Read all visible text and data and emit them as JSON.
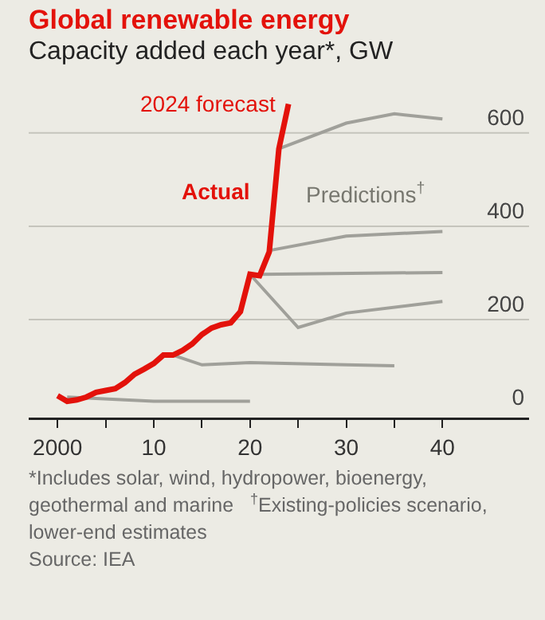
{
  "chart_data": {
    "type": "line",
    "title": "Global renewable energy",
    "subtitle": "Capacity added each year*, GW",
    "xlim": [
      1997,
      2049
    ],
    "ylim": [
      -10,
      680
    ],
    "xticks": [
      {
        "value": 2000,
        "label": "2000"
      },
      {
        "value": 2005,
        "label": null
      },
      {
        "value": 2010,
        "label": "10"
      },
      {
        "value": 2015,
        "label": null
      },
      {
        "value": 2020,
        "label": "20"
      },
      {
        "value": 2025,
        "label": null
      },
      {
        "value": 2030,
        "label": "30"
      },
      {
        "value": 2035,
        "label": null
      },
      {
        "value": 2040,
        "label": "40"
      }
    ],
    "yticks": [
      0,
      200,
      400,
      600
    ],
    "grid": "y",
    "legend": false,
    "line_style": "solid",
    "series": [
      {
        "color": "#a0a09a",
        "x": [
          2001,
          2010,
          2020
        ],
        "values": [
          34,
          25,
          25
        ]
      },
      {
        "color": "#a0a09a",
        "x": [
          2012,
          2015,
          2020,
          2030,
          2035
        ],
        "values": [
          124,
          103,
          108,
          103,
          101
        ]
      },
      {
        "color": "#a0a09a",
        "x": [
          2020,
          2025,
          2030,
          2040
        ],
        "values": [
          297,
          183,
          214,
          239
        ]
      },
      {
        "color": "#a0a09a",
        "x": [
          2021,
          2040
        ],
        "values": [
          297,
          301
        ]
      },
      {
        "color": "#a0a09a",
        "x": [
          2022,
          2030,
          2040
        ],
        "values": [
          348,
          379,
          389
        ]
      },
      {
        "color": "#a0a09a",
        "x": [
          2023,
          2030,
          2035,
          2040
        ],
        "values": [
          566,
          621,
          641,
          630
        ]
      },
      {
        "name": "Actual",
        "color": "#e3120b",
        "x": [
          2000,
          2001,
          2002,
          2003,
          2004,
          2005,
          2006,
          2007,
          2008,
          2009,
          2010,
          2011,
          2012,
          2013,
          2014,
          2015,
          2016,
          2017,
          2018,
          2019,
          2020,
          2021,
          2022,
          2023,
          2024
        ],
        "values": [
          37,
          25,
          28,
          34,
          44,
          48,
          52,
          65,
          83,
          94,
          106,
          124,
          124,
          134,
          148,
          168,
          182,
          189,
          193,
          217,
          297,
          294,
          345,
          566,
          662
        ]
      }
    ],
    "annotations": [
      {
        "text": "2024 forecast",
        "x": 2024,
        "y": 662
      },
      "Predictions$^{†}$",
      "*Includes solar, wind, hydropower, bioenergy, geothermal and marine",
      "$^{†}$Existing-policies scenario, lower-end estimates",
      "Source: IEA"
    ]
  }
}
